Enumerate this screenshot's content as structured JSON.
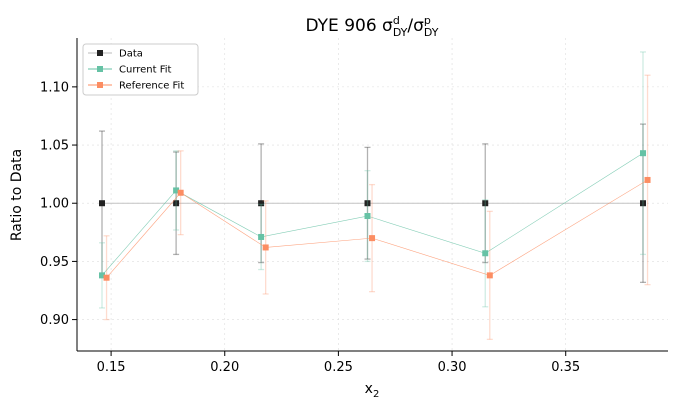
{
  "chart_data": {
    "type": "scatter",
    "title_main": "DYE 906 σ",
    "title_num_sup": "d",
    "title_num_sub": "DY",
    "title_sep": "/σ",
    "title_den_sup": "p",
    "title_den_sub": "DY",
    "xlabel_main": "x",
    "xlabel_sub": "2",
    "ylabel": "Ratio to Data",
    "xlim": [
      0.135,
      0.395
    ],
    "ylim": [
      0.873,
      1.142
    ],
    "xticks": [
      0.15,
      0.2,
      0.25,
      0.3,
      0.35
    ],
    "xtick_labels": [
      "0.15",
      "0.20",
      "0.25",
      "0.30",
      "0.35"
    ],
    "yticks": [
      0.9,
      0.95,
      1.0,
      1.05,
      1.1
    ],
    "ytick_labels": [
      "0.90",
      "0.95",
      "1.00",
      "1.05",
      "1.10"
    ],
    "grid": true,
    "legend_position": "top-left",
    "series": [
      {
        "name": "Data",
        "color": "#222222",
        "line_color": "#bbbbbb",
        "x": [
          0.146,
          0.1786,
          0.216,
          0.2628,
          0.3146,
          0.384
        ],
        "y": [
          1.0,
          1.0,
          1.0,
          1.0,
          1.0,
          1.0
        ],
        "err": [
          0.062,
          0.044,
          0.051,
          0.048,
          0.051,
          0.068
        ]
      },
      {
        "name": "Current Fit",
        "color": "#66c2a5",
        "line_color": "#66c2a5",
        "x": [
          0.146,
          0.1786,
          0.216,
          0.2628,
          0.3146,
          0.384
        ],
        "y": [
          0.938,
          1.011,
          0.971,
          0.989,
          0.957,
          1.043
        ],
        "err": [
          0.028,
          0.034,
          0.028,
          0.039,
          0.046,
          0.087
        ]
      },
      {
        "name": "Reference Fit",
        "color": "#fc8d62",
        "line_color": "#fc8d62",
        "x": [
          0.148,
          0.1806,
          0.218,
          0.2648,
          0.3166,
          0.386
        ],
        "y": [
          0.936,
          1.009,
          0.962,
          0.97,
          0.938,
          1.02
        ],
        "err": [
          0.036,
          0.036,
          0.04,
          0.046,
          0.055,
          0.09
        ]
      }
    ]
  }
}
